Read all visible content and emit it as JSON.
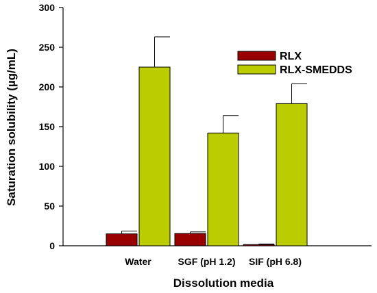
{
  "chart_data": {
    "type": "bar",
    "title": "",
    "xlabel": "Dissolution media",
    "ylabel": "Saturation solubility (µg/mL)",
    "ylim": [
      0,
      300
    ],
    "yticks": [
      0,
      50,
      100,
      150,
      200,
      250,
      300
    ],
    "categories": [
      "Water",
      "SGF (pH 1.2)",
      "SIF (pH 6.8)"
    ],
    "series": [
      {
        "name": "RLX",
        "color": "#990000",
        "values": [
          15,
          15.5,
          1.5
        ],
        "errors": [
          3.5,
          2,
          0.8
        ]
      },
      {
        "name": "RLX-SMEDDS",
        "color": "#bbcc00",
        "values": [
          225,
          142,
          179
        ],
        "errors": [
          38,
          22,
          25
        ]
      }
    ],
    "legend_position": "top-right",
    "grid": false,
    "error_bars": "positive"
  }
}
